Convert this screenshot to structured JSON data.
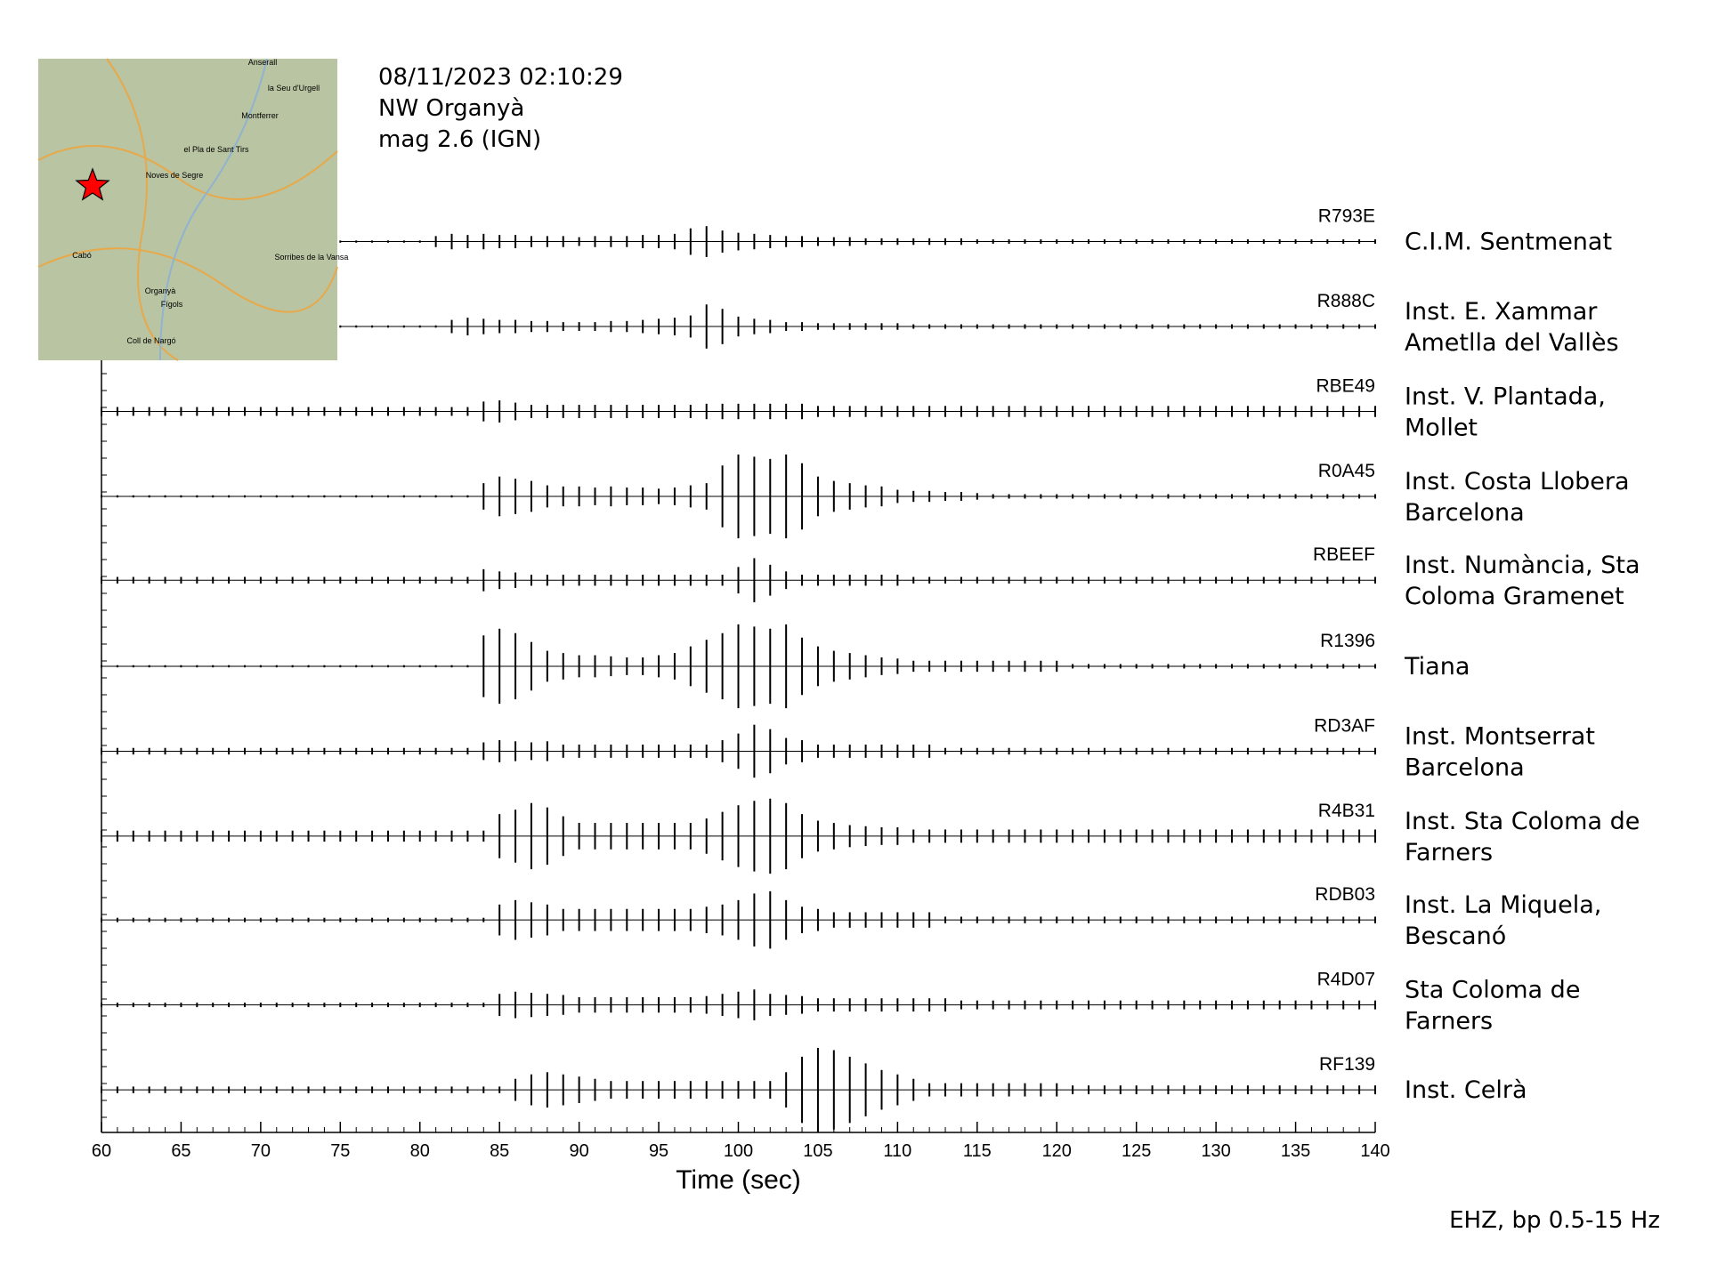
{
  "chart_data": {
    "type": "seismogram",
    "header": [
      "08/11/2023  02:10:29",
      "NW Organyà",
      "mag 2.6 (IGN)"
    ],
    "x_label": "Time (sec)",
    "footer": "EHZ, bp 0.5-15 Hz",
    "xlim": [
      60,
      140
    ],
    "xticks": [
      60,
      65,
      70,
      75,
      80,
      85,
      90,
      95,
      100,
      105,
      110,
      115,
      120,
      125,
      130,
      135,
      140
    ],
    "x": [
      60,
      61,
      62,
      63,
      64,
      65,
      66,
      67,
      68,
      69,
      70,
      71,
      72,
      73,
      74,
      75,
      76,
      77,
      78,
      79,
      80,
      81,
      82,
      83,
      84,
      85,
      86,
      87,
      88,
      89,
      90,
      91,
      92,
      93,
      94,
      95,
      96,
      97,
      98,
      99,
      100,
      101,
      102,
      103,
      104,
      105,
      106,
      107,
      108,
      109,
      110,
      111,
      112,
      113,
      114,
      115,
      116,
      117,
      118,
      119,
      120,
      121,
      122,
      123,
      124,
      125,
      126,
      127,
      128,
      129,
      130,
      131,
      132,
      133,
      134,
      135,
      136,
      137,
      138,
      139,
      140
    ],
    "color": "#000000",
    "series": [
      {
        "name": "R793E",
        "station": [
          "C.I.M. Sentmenat"
        ],
        "values": [
          null,
          null,
          null,
          null,
          null,
          null,
          null,
          null,
          null,
          null,
          null,
          null,
          null,
          null,
          null,
          1,
          1,
          1,
          1,
          1,
          1,
          5,
          7,
          6,
          7,
          6,
          6,
          5,
          5,
          5,
          4,
          5,
          5,
          5,
          6,
          6,
          7,
          12,
          14,
          10,
          8,
          7,
          6,
          5,
          5,
          4,
          4,
          4,
          3,
          3,
          3,
          3,
          3,
          3,
          3,
          2,
          2,
          2,
          2,
          2,
          2,
          2,
          2,
          2,
          2,
          2,
          2,
          2,
          2,
          2,
          2,
          2,
          2,
          2,
          2,
          2,
          2,
          2,
          2,
          2,
          2
        ]
      },
      {
        "name": "R888C",
        "station": [
          "Inst. E. Xammar",
          "Ametlla del Vallès"
        ],
        "values": [
          null,
          null,
          null,
          null,
          null,
          null,
          null,
          null,
          null,
          null,
          null,
          null,
          null,
          null,
          null,
          1,
          1,
          1,
          1,
          1,
          1,
          1,
          6,
          8,
          7,
          6,
          6,
          5,
          5,
          4,
          4,
          4,
          5,
          5,
          6,
          7,
          8,
          10,
          20,
          16,
          9,
          7,
          6,
          4,
          4,
          3,
          3,
          3,
          3,
          3,
          3,
          2,
          2,
          2,
          2,
          2,
          2,
          2,
          2,
          2,
          2,
          2,
          2,
          2,
          2,
          2,
          2,
          2,
          2,
          2,
          2,
          2,
          2,
          2,
          2,
          2,
          2,
          2,
          2,
          2,
          2
        ]
      },
      {
        "name": "RBE49",
        "station": [
          "Inst. V. Plantada,",
          "Mollet"
        ],
        "values": [
          4,
          4,
          4,
          4,
          4,
          4,
          4,
          4,
          4,
          4,
          4,
          4,
          4,
          4,
          4,
          4,
          4,
          4,
          4,
          4,
          4,
          4,
          4,
          4,
          9,
          10,
          8,
          6,
          6,
          6,
          6,
          6,
          6,
          6,
          6,
          6,
          6,
          6,
          7,
          7,
          7,
          7,
          7,
          7,
          7,
          5,
          5,
          5,
          5,
          5,
          5,
          5,
          5,
          5,
          5,
          5,
          5,
          5,
          5,
          5,
          5,
          5,
          5,
          5,
          5,
          5,
          5,
          5,
          5,
          5,
          5,
          5,
          5,
          5,
          5,
          5,
          5,
          5,
          5,
          5,
          5
        ]
      },
      {
        "name": "R0A45",
        "station": [
          "Inst. Costa Llobera",
          "Barcelona"
        ],
        "values": [
          1,
          1,
          1,
          1,
          1,
          1,
          1,
          1,
          1,
          1,
          1,
          1,
          1,
          1,
          1,
          1,
          1,
          1,
          1,
          1,
          1,
          1,
          1,
          1,
          12,
          18,
          16,
          14,
          10,
          9,
          9,
          8,
          9,
          8,
          8,
          7,
          8,
          10,
          12,
          28,
          38,
          36,
          34,
          38,
          30,
          18,
          14,
          12,
          10,
          9,
          6,
          5,
          5,
          4,
          4,
          3,
          2,
          2,
          2,
          2,
          2,
          2,
          2,
          2,
          2,
          2,
          2,
          2,
          2,
          2,
          2,
          2,
          2,
          2,
          2,
          2,
          2,
          2,
          2,
          2,
          2
        ]
      },
      {
        "name": "RBEEF",
        "station": [
          "Inst. Numància, Sta",
          "Coloma Gramenet"
        ],
        "values": [
          3,
          3,
          3,
          3,
          3,
          3,
          3,
          3,
          3,
          3,
          3,
          3,
          3,
          3,
          3,
          3,
          3,
          3,
          3,
          3,
          3,
          3,
          3,
          3,
          10,
          8,
          7,
          5,
          5,
          5,
          5,
          5,
          5,
          5,
          5,
          5,
          5,
          5,
          5,
          5,
          12,
          20,
          14,
          8,
          5,
          5,
          5,
          5,
          5,
          5,
          5,
          3,
          3,
          3,
          3,
          3,
          3,
          3,
          3,
          3,
          3,
          3,
          3,
          3,
          3,
          3,
          3,
          3,
          3,
          3,
          3,
          3,
          3,
          3,
          3,
          3,
          3,
          3,
          3,
          3,
          3
        ]
      },
      {
        "name": "R1396",
        "station": [
          "Tiana"
        ],
        "values": [
          1,
          1,
          1,
          1,
          1,
          1,
          1,
          1,
          1,
          1,
          1,
          1,
          1,
          1,
          1,
          1,
          1,
          1,
          1,
          1,
          1,
          1,
          1,
          1,
          28,
          34,
          30,
          22,
          14,
          12,
          10,
          10,
          9,
          8,
          8,
          10,
          12,
          18,
          24,
          30,
          38,
          36,
          34,
          38,
          26,
          18,
          14,
          12,
          10,
          8,
          7,
          5,
          5,
          5,
          5,
          5,
          5,
          5,
          5,
          5,
          5,
          2,
          2,
          2,
          2,
          2,
          2,
          2,
          2,
          2,
          2,
          2,
          2,
          2,
          2,
          2,
          2,
          2,
          2,
          2,
          2
        ]
      },
      {
        "name": "RD3AF",
        "station": [
          "Inst. Montserrat",
          "Barcelona"
        ],
        "values": [
          3,
          3,
          3,
          3,
          3,
          3,
          3,
          3,
          3,
          3,
          3,
          3,
          3,
          3,
          3,
          3,
          3,
          3,
          3,
          3,
          3,
          3,
          3,
          3,
          8,
          10,
          9,
          8,
          9,
          6,
          6,
          6,
          6,
          6,
          6,
          6,
          6,
          6,
          6,
          10,
          16,
          24,
          20,
          12,
          10,
          6,
          6,
          6,
          6,
          6,
          6,
          6,
          6,
          3,
          3,
          3,
          3,
          3,
          3,
          3,
          3,
          3,
          3,
          3,
          3,
          3,
          3,
          3,
          3,
          3,
          3,
          3,
          3,
          3,
          3,
          3,
          3,
          3,
          3,
          3,
          3
        ]
      },
      {
        "name": "R4B31",
        "station": [
          "Inst. Sta Coloma de",
          "Farners"
        ],
        "values": [
          5,
          5,
          5,
          5,
          5,
          5,
          5,
          5,
          5,
          5,
          5,
          5,
          5,
          5,
          5,
          5,
          5,
          5,
          5,
          5,
          5,
          5,
          5,
          5,
          5,
          20,
          24,
          30,
          26,
          18,
          12,
          12,
          12,
          12,
          12,
          12,
          12,
          12,
          16,
          22,
          28,
          32,
          34,
          30,
          20,
          14,
          12,
          10,
          9,
          8,
          8,
          6,
          6,
          6,
          6,
          6,
          6,
          6,
          6,
          6,
          6,
          6,
          6,
          6,
          6,
          6,
          6,
          6,
          6,
          6,
          6,
          6,
          6,
          6,
          6,
          6,
          6,
          6,
          6,
          6,
          6
        ]
      },
      {
        "name": "RDB03",
        "station": [
          "Inst. La Miquela,",
          "Bescanó"
        ],
        "values": [
          2,
          2,
          2,
          2,
          2,
          2,
          2,
          2,
          2,
          2,
          2,
          2,
          2,
          2,
          2,
          2,
          2,
          2,
          2,
          2,
          2,
          2,
          2,
          2,
          2,
          14,
          18,
          16,
          14,
          10,
          10,
          10,
          10,
          10,
          10,
          10,
          10,
          10,
          12,
          14,
          18,
          24,
          26,
          18,
          12,
          10,
          7,
          7,
          7,
          7,
          7,
          7,
          7,
          3,
          3,
          3,
          3,
          3,
          3,
          3,
          3,
          3,
          3,
          3,
          3,
          3,
          3,
          3,
          3,
          3,
          3,
          3,
          3,
          3,
          3,
          3,
          3,
          3,
          3,
          3,
          3
        ]
      },
      {
        "name": "R4D07",
        "station": [
          "Sta Coloma de",
          "Farners"
        ],
        "values": [
          2,
          2,
          2,
          2,
          2,
          2,
          2,
          2,
          2,
          2,
          2,
          2,
          2,
          2,
          2,
          2,
          2,
          2,
          2,
          2,
          2,
          2,
          2,
          2,
          2,
          10,
          12,
          11,
          10,
          9,
          7,
          7,
          7,
          7,
          7,
          7,
          7,
          7,
          8,
          10,
          12,
          14,
          10,
          9,
          8,
          6,
          6,
          6,
          6,
          6,
          6,
          6,
          6,
          6,
          4,
          4,
          4,
          4,
          4,
          4,
          4,
          4,
          4,
          4,
          4,
          4,
          4,
          4,
          4,
          4,
          4,
          4,
          4,
          4,
          4,
          4,
          4,
          4,
          4,
          4,
          4
        ]
      },
      {
        "name": "RF139",
        "station": [
          "Inst. Celrà"
        ],
        "values": [
          3,
          3,
          3,
          3,
          3,
          3,
          3,
          3,
          3,
          3,
          3,
          3,
          3,
          3,
          3,
          3,
          3,
          3,
          3,
          3,
          3,
          3,
          3,
          3,
          3,
          3,
          10,
          14,
          16,
          14,
          12,
          10,
          8,
          8,
          8,
          8,
          8,
          8,
          8,
          8,
          8,
          8,
          8,
          16,
          30,
          38,
          36,
          30,
          24,
          18,
          14,
          10,
          6,
          6,
          6,
          6,
          6,
          6,
          6,
          6,
          6,
          4,
          4,
          4,
          4,
          4,
          4,
          4,
          4,
          4,
          4,
          4,
          4,
          4,
          4,
          4,
          4,
          4,
          4,
          4,
          4
        ]
      }
    ]
  },
  "map": {
    "labels": [
      "Anserall",
      "la Seu d'Urgell",
      "Montferrer",
      "el Pla de Sant Tirs",
      "Noves de Segre",
      "Cabó",
      "Organyà",
      "Fígols",
      "Coll de Nargó",
      "Sorribes de la Vansa"
    ]
  }
}
